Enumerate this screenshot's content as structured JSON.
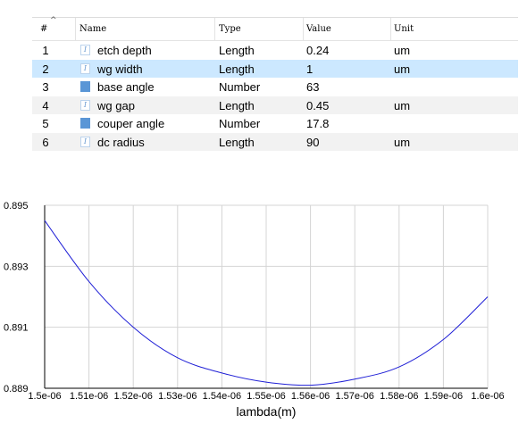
{
  "table": {
    "columns": [
      "#",
      "Name",
      "Type",
      "Value",
      "Unit"
    ],
    "rows": [
      {
        "index": "1",
        "icon": "formula-icon",
        "name": "etch depth",
        "type": "Length",
        "value": "0.24",
        "unit": "um"
      },
      {
        "index": "2",
        "icon": "formula-icon",
        "name": "wg width",
        "type": "Length",
        "value": "1",
        "unit": "um"
      },
      {
        "index": "3",
        "icon": "number-icon",
        "name": "base angle",
        "type": "Number",
        "value": "63",
        "unit": ""
      },
      {
        "index": "4",
        "icon": "formula-icon",
        "name": "wg gap",
        "type": "Length",
        "value": "0.45",
        "unit": "um"
      },
      {
        "index": "5",
        "icon": "number-icon",
        "name": "couper angle",
        "type": "Number",
        "value": "17.8",
        "unit": ""
      },
      {
        "index": "6",
        "icon": "formula-icon",
        "name": "dc radius",
        "type": "Length",
        "value": "90",
        "unit": "um"
      }
    ]
  },
  "chart_data": {
    "type": "line",
    "xlabel": "lambda(m)",
    "ylabel": "",
    "xlim": [
      1.5e-06,
      1.6e-06
    ],
    "ylim": [
      0.889,
      0.895
    ],
    "x_ticks": [
      1.5e-06,
      1.51e-06,
      1.52e-06,
      1.53e-06,
      1.54e-06,
      1.55e-06,
      1.56e-06,
      1.57e-06,
      1.58e-06,
      1.59e-06,
      1.6e-06
    ],
    "x_tick_labels": [
      "1.5e-06",
      "1.51e-06",
      "1.52e-06",
      "1.53e-06",
      "1.54e-06",
      "1.55e-06",
      "1.56e-06",
      "1.57e-06",
      "1.58e-06",
      "1.59e-06",
      "1.6e-06"
    ],
    "y_ticks": [
      0.889,
      0.891,
      0.893,
      0.895
    ],
    "y_tick_labels": [
      "0.889",
      "0.891",
      "0.893",
      "0.895"
    ],
    "grid": true,
    "series": [
      {
        "color": "#1f1fd6",
        "x": [
          1.5e-06,
          1.51e-06,
          1.52e-06,
          1.53e-06,
          1.54e-06,
          1.55e-06,
          1.56e-06,
          1.57e-06,
          1.58e-06,
          1.59e-06,
          1.6e-06
        ],
        "y": [
          0.8945,
          0.8925,
          0.891,
          0.89,
          0.8895,
          0.8892,
          0.8891,
          0.8893,
          0.8897,
          0.8906,
          0.892
        ]
      }
    ]
  }
}
